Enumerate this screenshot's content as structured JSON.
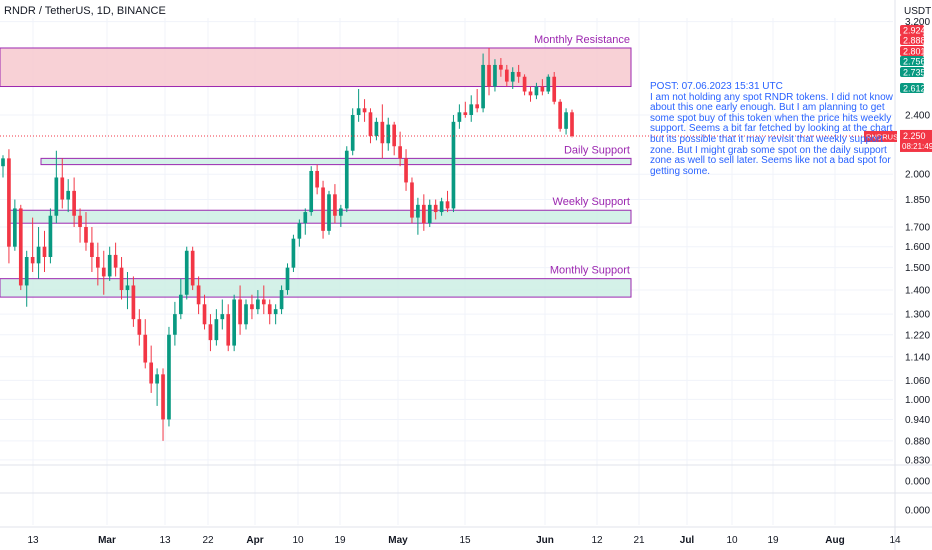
{
  "header": {
    "title": "RNDR / TetherUS, 1D, BINANCE",
    "currency": "USDT"
  },
  "annotation": {
    "lines": [
      "POST: 07.06.2023 15:31 UTC",
      "I am not holding any spot RNDR tokens. I did not know",
      "about this one early enough. But I am planning to get",
      "some spot buy of this token when the price hits weekly",
      "support. Seems a bit far fetched by looking at the chart",
      "but its possible that it may revisit that weekly support",
      "zone. But I might grab some spot on the daily support",
      "zone as well to sell later. Seems like not a bad spot for",
      "getting some."
    ]
  },
  "colors": {
    "up": "#089981",
    "down": "#f23645",
    "zone_border": "#9c27b0",
    "resistance_fill": "#f7c9cf",
    "support_fill": "#cdeee4",
    "annotation": "#2962ff",
    "price_tag": "#f23645"
  },
  "chart_data": {
    "type": "candlestick",
    "title": "RNDR / TetherUS, 1D, BINANCE",
    "ylabel": "USDT",
    "y_scale": "log",
    "y_ticks": [
      "3.200",
      "2.400",
      "2.000",
      "1.850",
      "1.700",
      "1.600",
      "1.500",
      "1.400",
      "1.300",
      "1.220",
      "1.140",
      "1.060",
      "1.000",
      "0.940",
      "0.880",
      "0.830"
    ],
    "lower_pane_ticks": [
      "0.000",
      "0.000"
    ],
    "x_ticks": [
      "13",
      "Mar",
      "13",
      "22",
      "Apr",
      "10",
      "19",
      "May",
      "15",
      "Jun",
      "12",
      "21",
      "Jul",
      "10",
      "19",
      "Aug",
      "14"
    ],
    "zones": [
      {
        "label": "Monthly Resistance",
        "top": 2.95,
        "bottom": 2.62,
        "kind": "resistance"
      },
      {
        "label": "Daily Support",
        "top": 2.1,
        "bottom": 2.06,
        "kind": "support"
      },
      {
        "label": "Weekly Support",
        "top": 1.79,
        "bottom": 1.72,
        "kind": "support"
      },
      {
        "label": "Monthly Support",
        "top": 1.45,
        "bottom": 1.37,
        "kind": "support"
      }
    ],
    "price_labels": [
      {
        "value": "2.924",
        "color": "#f23645"
      },
      {
        "value": "2.888",
        "color": "#f23645"
      },
      {
        "value": "2.801",
        "color": "#f23645"
      },
      {
        "value": "2.756",
        "color": "#089981"
      },
      {
        "value": "2.735",
        "color": "#089981"
      },
      {
        "value": "2.612",
        "color": "#089981"
      }
    ],
    "current_price": {
      "symbol": "RNDRUSDT",
      "price": "2.250",
      "countdown": "08:21:49"
    },
    "candles": [
      [
        2.05,
        2.12,
        1.98,
        2.1
      ],
      [
        2.1,
        2.16,
        1.52,
        1.6
      ],
      [
        1.6,
        1.85,
        1.58,
        1.8
      ],
      [
        1.8,
        1.82,
        1.4,
        1.42
      ],
      [
        1.42,
        1.58,
        1.33,
        1.55
      ],
      [
        1.55,
        1.75,
        1.48,
        1.52
      ],
      [
        1.52,
        1.7,
        1.45,
        1.6
      ],
      [
        1.6,
        1.68,
        1.48,
        1.55
      ],
      [
        1.55,
        1.8,
        1.52,
        1.76
      ],
      [
        1.76,
        2.15,
        1.72,
        1.98
      ],
      [
        1.98,
        2.1,
        1.8,
        1.85
      ],
      [
        1.85,
        1.97,
        1.78,
        1.9
      ],
      [
        1.9,
        1.98,
        1.7,
        1.76
      ],
      [
        1.76,
        1.8,
        1.62,
        1.7
      ],
      [
        1.7,
        1.78,
        1.58,
        1.62
      ],
      [
        1.62,
        1.7,
        1.48,
        1.55
      ],
      [
        1.55,
        1.62,
        1.42,
        1.5
      ],
      [
        1.5,
        1.58,
        1.38,
        1.46
      ],
      [
        1.46,
        1.6,
        1.44,
        1.56
      ],
      [
        1.56,
        1.62,
        1.46,
        1.5
      ],
      [
        1.5,
        1.55,
        1.36,
        1.4
      ],
      [
        1.4,
        1.48,
        1.32,
        1.42
      ],
      [
        1.42,
        1.46,
        1.25,
        1.28
      ],
      [
        1.28,
        1.32,
        1.18,
        1.22
      ],
      [
        1.22,
        1.28,
        1.1,
        1.12
      ],
      [
        1.12,
        1.18,
        1.02,
        1.05
      ],
      [
        1.05,
        1.1,
        0.98,
        1.08
      ],
      [
        1.08,
        1.1,
        0.88,
        0.94
      ],
      [
        0.94,
        1.25,
        0.92,
        1.22
      ],
      [
        1.22,
        1.35,
        1.18,
        1.3
      ],
      [
        1.3,
        1.45,
        1.28,
        1.38
      ],
      [
        1.38,
        1.6,
        1.36,
        1.58
      ],
      [
        1.58,
        1.6,
        1.4,
        1.42
      ],
      [
        1.42,
        1.46,
        1.3,
        1.34
      ],
      [
        1.34,
        1.38,
        1.24,
        1.26
      ],
      [
        1.26,
        1.3,
        1.16,
        1.2
      ],
      [
        1.2,
        1.32,
        1.18,
        1.28
      ],
      [
        1.28,
        1.36,
        1.24,
        1.3
      ],
      [
        1.3,
        1.34,
        1.16,
        1.18
      ],
      [
        1.18,
        1.38,
        1.16,
        1.36
      ],
      [
        1.36,
        1.42,
        1.22,
        1.26
      ],
      [
        1.26,
        1.36,
        1.24,
        1.34
      ],
      [
        1.34,
        1.38,
        1.28,
        1.32
      ],
      [
        1.32,
        1.4,
        1.3,
        1.36
      ],
      [
        1.36,
        1.42,
        1.3,
        1.34
      ],
      [
        1.34,
        1.36,
        1.26,
        1.3
      ],
      [
        1.3,
        1.34,
        1.26,
        1.32
      ],
      [
        1.32,
        1.42,
        1.3,
        1.4
      ],
      [
        1.4,
        1.52,
        1.38,
        1.5
      ],
      [
        1.5,
        1.66,
        1.48,
        1.64
      ],
      [
        1.64,
        1.74,
        1.6,
        1.72
      ],
      [
        1.72,
        1.8,
        1.66,
        1.78
      ],
      [
        1.78,
        2.05,
        1.76,
        2.02
      ],
      [
        2.02,
        2.06,
        1.88,
        1.92
      ],
      [
        1.92,
        1.96,
        1.64,
        1.68
      ],
      [
        1.68,
        1.9,
        1.66,
        1.88
      ],
      [
        1.88,
        1.94,
        1.72,
        1.76
      ],
      [
        1.76,
        1.82,
        1.7,
        1.8
      ],
      [
        1.8,
        2.18,
        1.78,
        2.15
      ],
      [
        2.15,
        2.45,
        2.12,
        2.4
      ],
      [
        2.4,
        2.6,
        2.35,
        2.45
      ],
      [
        2.45,
        2.52,
        2.35,
        2.42
      ],
      [
        2.42,
        2.45,
        2.2,
        2.25
      ],
      [
        2.25,
        2.38,
        2.22,
        2.35
      ],
      [
        2.35,
        2.48,
        2.1,
        2.2
      ],
      [
        2.2,
        2.38,
        2.15,
        2.33
      ],
      [
        2.33,
        2.35,
        2.12,
        2.18
      ],
      [
        2.18,
        2.28,
        2.05,
        2.1
      ],
      [
        2.1,
        2.16,
        1.9,
        1.95
      ],
      [
        1.95,
        1.98,
        1.72,
        1.75
      ],
      [
        1.75,
        1.86,
        1.66,
        1.82
      ],
      [
        1.82,
        1.88,
        1.68,
        1.72
      ],
      [
        1.72,
        1.85,
        1.7,
        1.82
      ],
      [
        1.82,
        1.85,
        1.74,
        1.78
      ],
      [
        1.78,
        1.86,
        1.76,
        1.84
      ],
      [
        1.84,
        1.9,
        1.78,
        1.8
      ],
      [
        1.8,
        2.4,
        1.78,
        2.35
      ],
      [
        2.35,
        2.48,
        2.3,
        2.42
      ],
      [
        2.42,
        2.5,
        2.38,
        2.4
      ],
      [
        2.4,
        2.55,
        2.35,
        2.48
      ],
      [
        2.48,
        2.6,
        2.42,
        2.45
      ],
      [
        2.45,
        2.9,
        2.42,
        2.8
      ],
      [
        2.8,
        2.95,
        2.55,
        2.62
      ],
      [
        2.62,
        2.85,
        2.58,
        2.8
      ],
      [
        2.8,
        2.86,
        2.7,
        2.76
      ],
      [
        2.76,
        2.8,
        2.62,
        2.66
      ],
      [
        2.66,
        2.78,
        2.6,
        2.74
      ],
      [
        2.74,
        2.8,
        2.65,
        2.7
      ],
      [
        2.7,
        2.72,
        2.55,
        2.58
      ],
      [
        2.58,
        2.62,
        2.5,
        2.55
      ],
      [
        2.55,
        2.65,
        2.52,
        2.62
      ],
      [
        2.62,
        2.68,
        2.55,
        2.58
      ],
      [
        2.58,
        2.72,
        2.56,
        2.7
      ],
      [
        2.7,
        2.74,
        2.48,
        2.5
      ],
      [
        2.5,
        2.52,
        2.28,
        2.3
      ],
      [
        2.3,
        2.45,
        2.26,
        2.42
      ],
      [
        2.42,
        2.44,
        2.24,
        2.25
      ]
    ]
  }
}
